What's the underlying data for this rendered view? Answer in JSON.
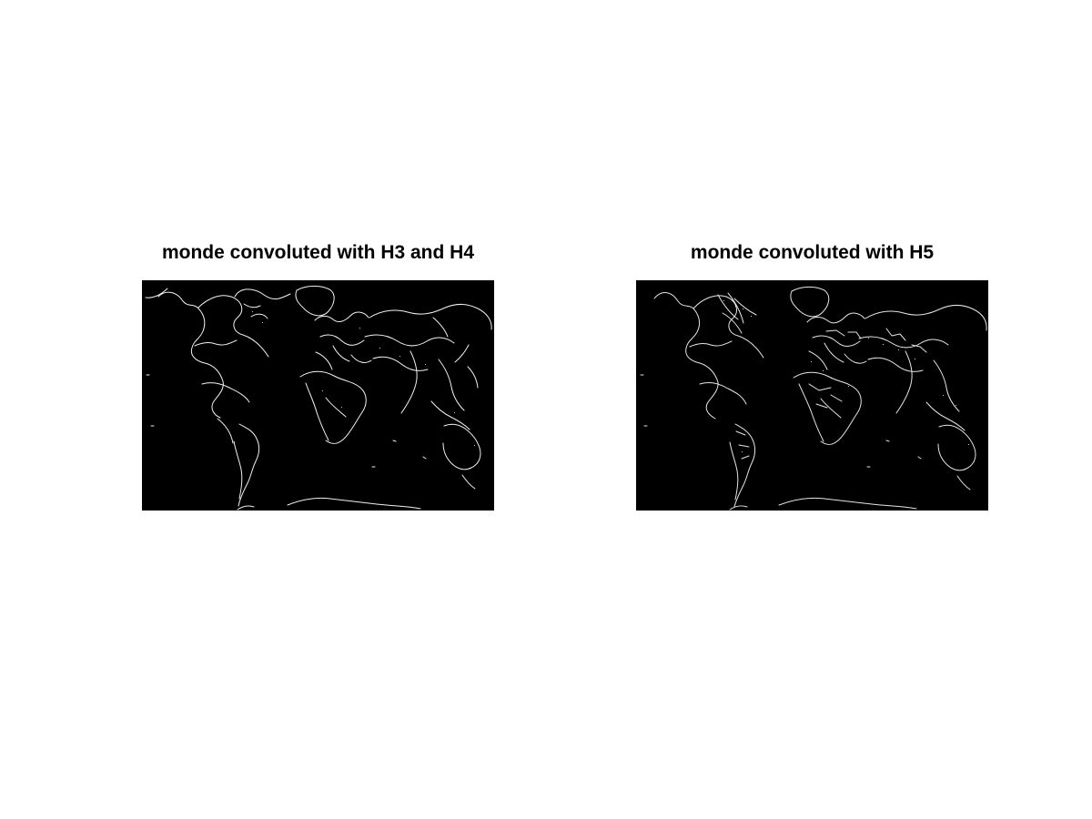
{
  "figure": {
    "panels": [
      {
        "title": "monde convoluted with H3 and H4",
        "image_description": "edge-detected world map"
      },
      {
        "title": "monde convoluted with H5",
        "image_description": "edge-detected world map"
      }
    ]
  },
  "colors": {
    "background": "#ffffff",
    "image_background": "#000000",
    "edge_lines": "#ffffff"
  }
}
